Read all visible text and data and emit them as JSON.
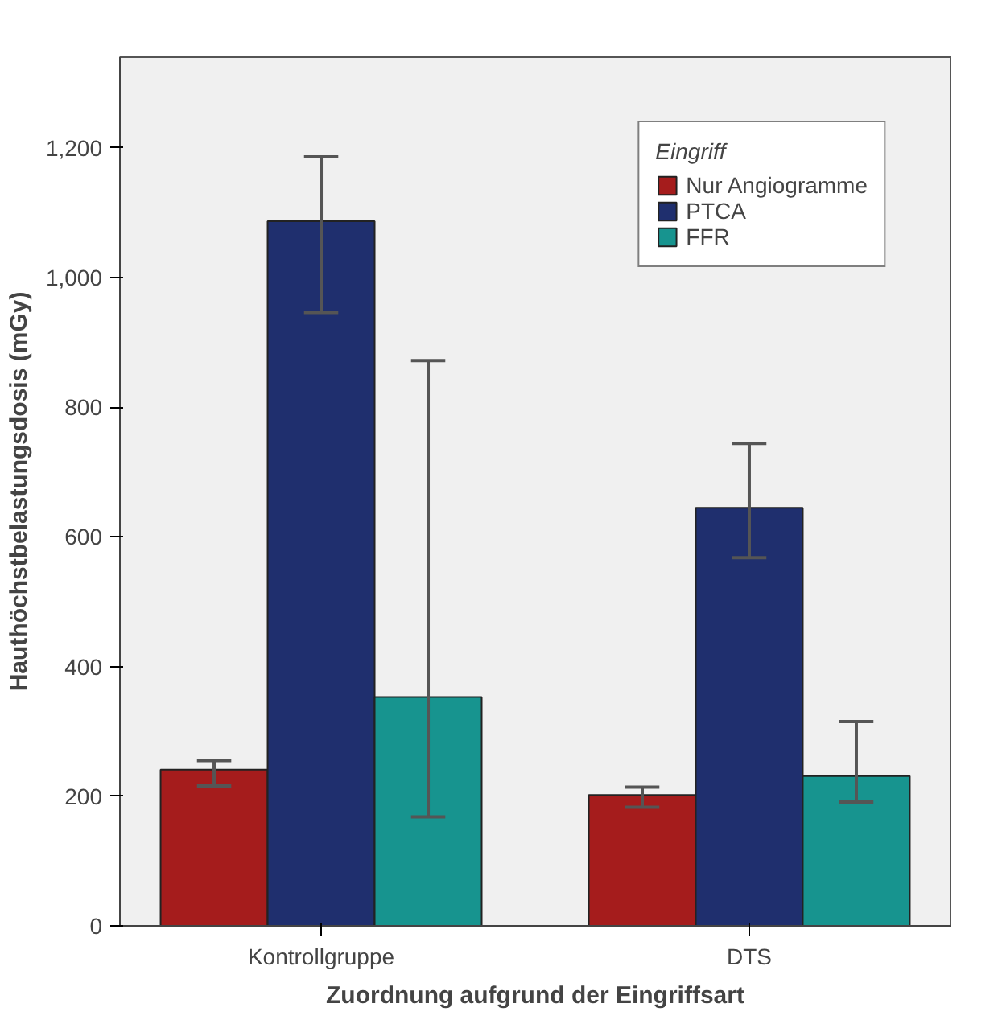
{
  "chart_data": {
    "type": "bar",
    "xlabel": "Zuordnung aufgrund der Eingriffsart",
    "ylabel": "Hauthöchstbelastungsdosis (mGy)",
    "legend_title": "Eingriff",
    "categories": [
      "Kontrollgruppe",
      "DTS"
    ],
    "series": [
      {
        "name": "Nur Angiogramme",
        "color": "#a51c1c",
        "values": [
          241,
          202
        ],
        "errors": [
          [
            216,
            255
          ],
          [
            183,
            214
          ]
        ]
      },
      {
        "name": "PTCA",
        "color": "#1f2f6e",
        "values": [
          1087,
          645
        ],
        "errors": [
          [
            946,
            1186
          ],
          [
            568,
            744
          ]
        ]
      },
      {
        "name": "FFR",
        "color": "#17948f",
        "values": [
          353,
          231
        ],
        "errors": [
          [
            168,
            872
          ],
          [
            191,
            315
          ]
        ]
      }
    ],
    "ylim": [
      0,
      1340
    ],
    "yticks": [
      0,
      {
        "value": 200,
        "label": "200"
      },
      {
        "value": 400,
        "label": "400"
      },
      {
        "value": 600,
        "label": "600"
      },
      {
        "value": 800,
        "label": "800"
      },
      {
        "value": 1000,
        "label": "1,000"
      },
      {
        "value": 1200,
        "label": "1,200"
      }
    ],
    "grid": false,
    "legend": "top right"
  }
}
